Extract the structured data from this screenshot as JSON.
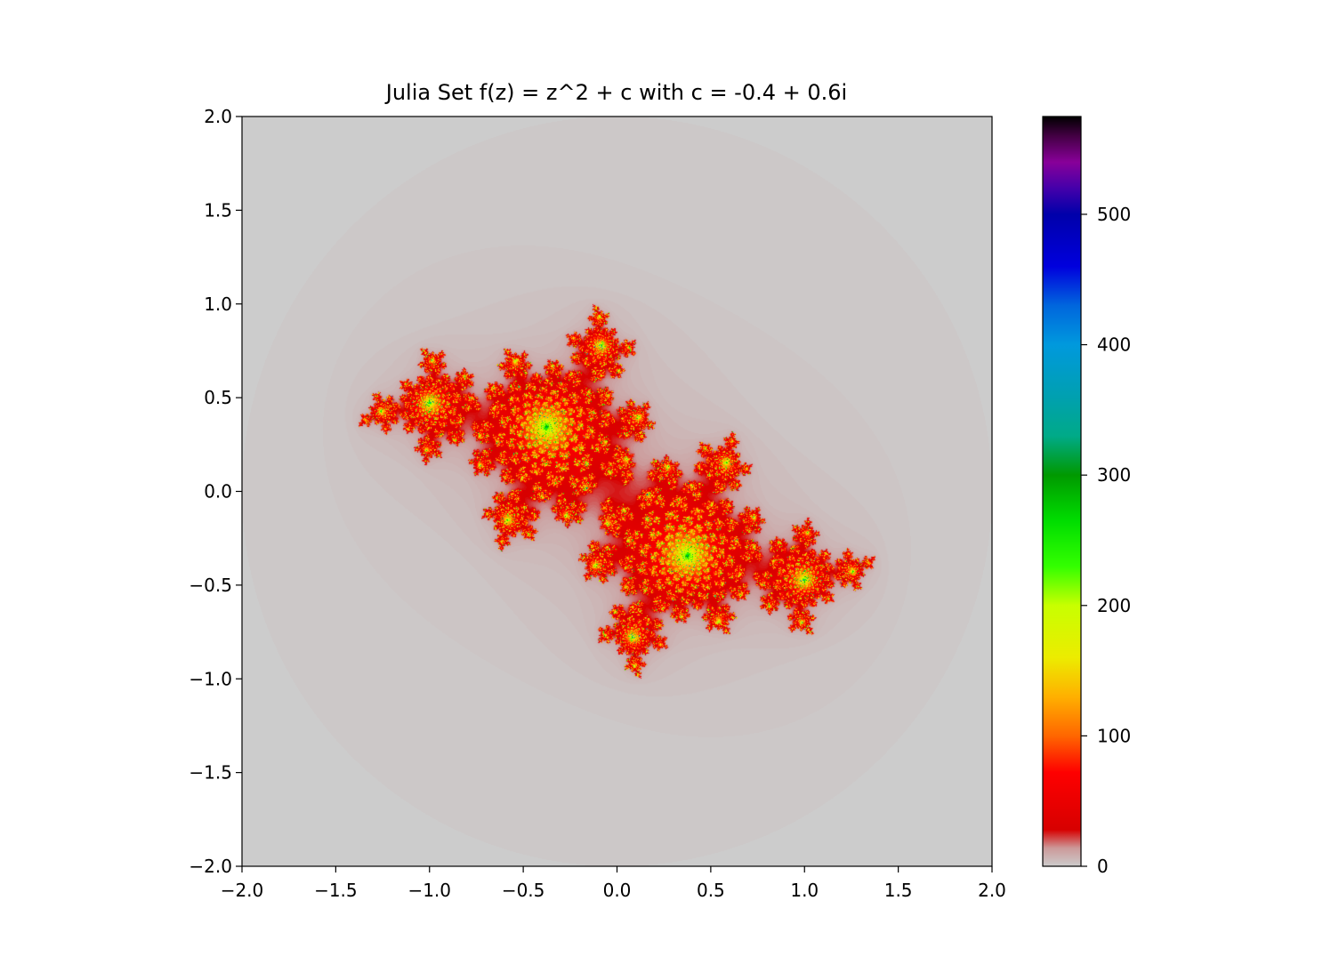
{
  "chart_data": {
    "type": "heatmap",
    "title": "Julia Set f(z) = z^2 + c with c = -0.4 + 0.6i",
    "c": {
      "re": -0.4,
      "im": 0.6
    },
    "xlabel": "",
    "ylabel": "",
    "xlim": [
      -2.0,
      2.0
    ],
    "ylim": [
      -2.0,
      2.0
    ],
    "x_ticks": [
      "−2.0",
      "−1.5",
      "−1.0",
      "−0.5",
      "0.0",
      "0.5",
      "1.0",
      "1.5",
      "2.0"
    ],
    "y_ticks": [
      "2.0",
      "1.5",
      "1.0",
      "0.5",
      "0.0",
      "−0.5",
      "−1.0",
      "−1.5",
      "−2.0"
    ],
    "value_range": [
      0,
      575
    ],
    "colorbar_ticks": [
      "0",
      "100",
      "200",
      "300",
      "400",
      "500"
    ],
    "colormap": "nipy_spectral_r",
    "colormap_stops": [
      {
        "v": 0,
        "color": "#cccccc"
      },
      {
        "v": 14,
        "color": "#cc9999"
      },
      {
        "v": 28,
        "color": "#d70000"
      },
      {
        "v": 72,
        "color": "#fe0000"
      },
      {
        "v": 100,
        "color": "#ff6600"
      },
      {
        "v": 130,
        "color": "#ffb000"
      },
      {
        "v": 160,
        "color": "#ecec00"
      },
      {
        "v": 200,
        "color": "#c8ff00"
      },
      {
        "v": 230,
        "color": "#33ff00"
      },
      {
        "v": 265,
        "color": "#00dd00"
      },
      {
        "v": 300,
        "color": "#009900"
      },
      {
        "v": 330,
        "color": "#00aa88"
      },
      {
        "v": 360,
        "color": "#00a0b0"
      },
      {
        "v": 400,
        "color": "#0099dd"
      },
      {
        "v": 430,
        "color": "#0066dd"
      },
      {
        "v": 460,
        "color": "#0000dd"
      },
      {
        "v": 500,
        "color": "#0000aa"
      },
      {
        "v": 520,
        "color": "#4400aa"
      },
      {
        "v": 540,
        "color": "#880099"
      },
      {
        "v": 560,
        "color": "#440044"
      },
      {
        "v": 575,
        "color": "#000000"
      }
    ],
    "background_color": "#cccccc",
    "grid": false,
    "legend": "colorbar-right"
  }
}
